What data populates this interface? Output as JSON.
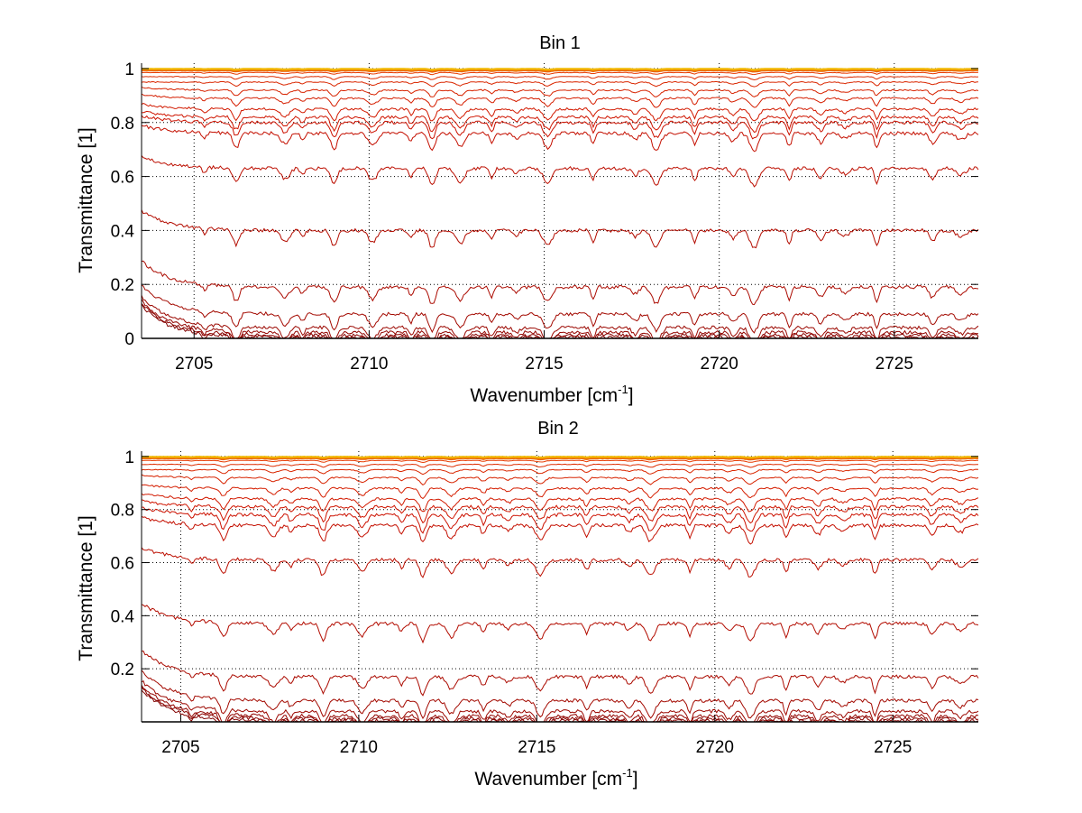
{
  "chart_data": [
    {
      "type": "line",
      "title": "Bin 1",
      "xlabel": "Wavenumber [cm",
      "xlabel_sup": "-1",
      "xlabel_close": "]",
      "ylabel": "Transmittance [1]",
      "xlim": [
        2703.5,
        2727.4
      ],
      "ylim": [
        0,
        1.02
      ],
      "xticks": [
        2705,
        2710,
        2715,
        2720,
        2725
      ],
      "yticks": [
        0,
        0.2,
        0.4,
        0.6,
        0.8,
        1
      ],
      "ytick_labels": [
        "0",
        "0.2",
        "0.4",
        "0.6",
        "0.8",
        "1"
      ],
      "grid": true,
      "levels": [
        0.0,
        0.004,
        0.012,
        0.022,
        0.04,
        0.09,
        0.19,
        0.4,
        0.63,
        0.76,
        0.8,
        0.82,
        0.85,
        0.89,
        0.92,
        0.95,
        0.97,
        0.985,
        0.993,
        0.997,
        0.999
      ]
    },
    {
      "type": "line",
      "title": "Bin 2",
      "xlabel": "Wavenumber [cm",
      "xlabel_sup": "-1",
      "xlabel_close": "]",
      "ylabel": "Transmittance [1]",
      "xlim": [
        2703.9,
        2727.4
      ],
      "ylim": [
        0,
        1.02
      ],
      "xticks": [
        2705,
        2710,
        2715,
        2720,
        2725
      ],
      "yticks": [
        0.2,
        0.4,
        0.6,
        0.8,
        1
      ],
      "ytick_labels": [
        "0.2",
        "0.4",
        "0.6",
        "0.8",
        "1"
      ],
      "grid": true,
      "levels": [
        0.0,
        0.004,
        0.012,
        0.022,
        0.04,
        0.08,
        0.17,
        0.37,
        0.61,
        0.74,
        0.78,
        0.81,
        0.84,
        0.88,
        0.92,
        0.95,
        0.97,
        0.985,
        0.993,
        0.997,
        0.999
      ]
    }
  ]
}
